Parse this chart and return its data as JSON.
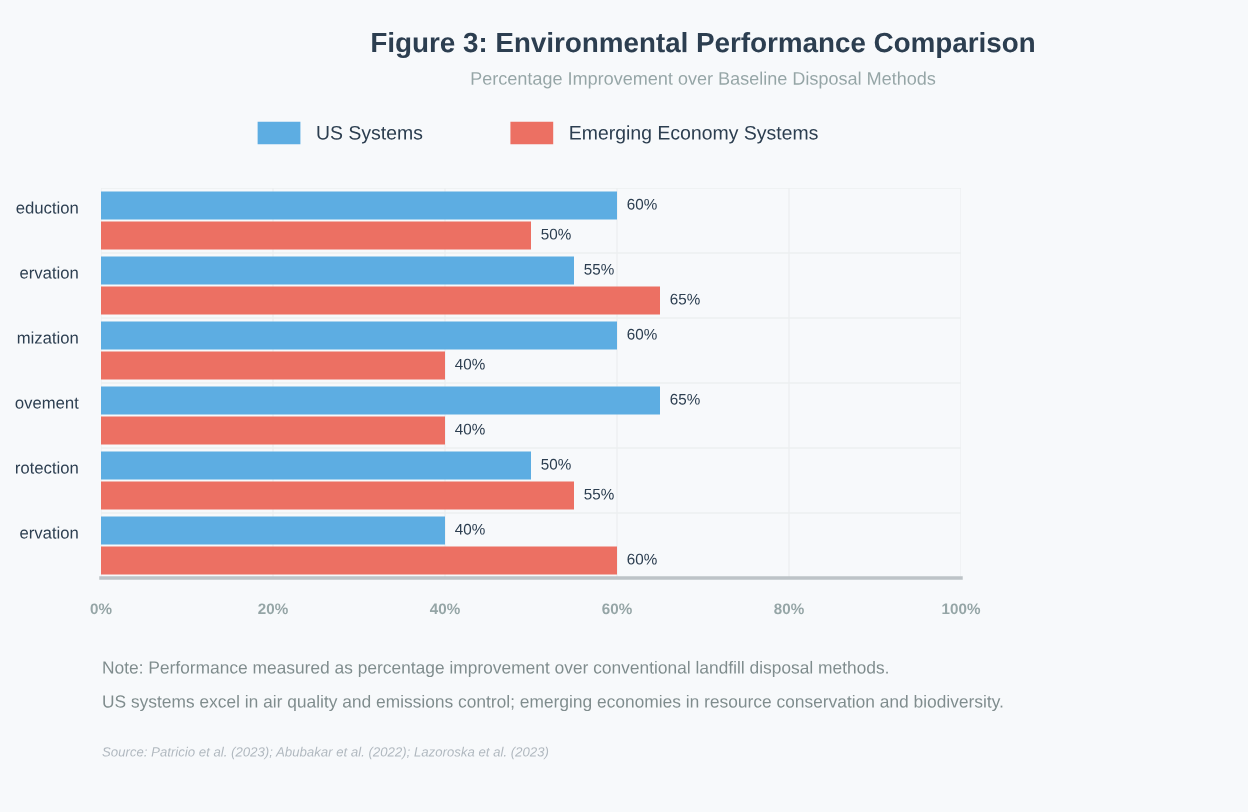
{
  "chart_data": {
    "type": "bar",
    "orientation": "horizontal",
    "title": "Figure 3: Environmental Performance Comparison",
    "subtitle": "Percentage Improvement over Baseline Disposal Methods",
    "categories": [
      "eduction",
      "ervation",
      "mization",
      "ovement",
      "rotection",
      "ervation"
    ],
    "series": [
      {
        "name": "US Systems",
        "color": "#5dade2",
        "values": [
          60,
          55,
          60,
          65,
          50,
          40
        ],
        "value_labels": [
          "60%",
          "55%",
          "60%",
          "65%",
          "50%",
          "40%"
        ]
      },
      {
        "name": "Emerging Economy Systems",
        "color": "#ec7063",
        "values": [
          50,
          65,
          40,
          40,
          55,
          60
        ],
        "value_labels": [
          "50%",
          "65%",
          "40%",
          "40%",
          "55%",
          "60%"
        ]
      }
    ],
    "xlim": [
      0,
      100
    ],
    "xticks": [
      {
        "value": 0,
        "label": "0%"
      },
      {
        "value": 20,
        "label": "20%"
      },
      {
        "value": 40,
        "label": "40%"
      },
      {
        "value": 60,
        "label": "60%"
      },
      {
        "value": 80,
        "label": "80%"
      },
      {
        "value": 100,
        "label": "100%"
      }
    ],
    "grid": true,
    "legend": "top",
    "annotations": [
      "Note: Performance measured as percentage improvement over conventional landfill disposal methods.",
      "US systems excel in air quality and emissions control; emerging economies in resource conservation and biodiversity.",
      "Source: Patricio et al. (2023); Abubakar et al. (2022); Lazoroska et al. (2023)"
    ]
  }
}
